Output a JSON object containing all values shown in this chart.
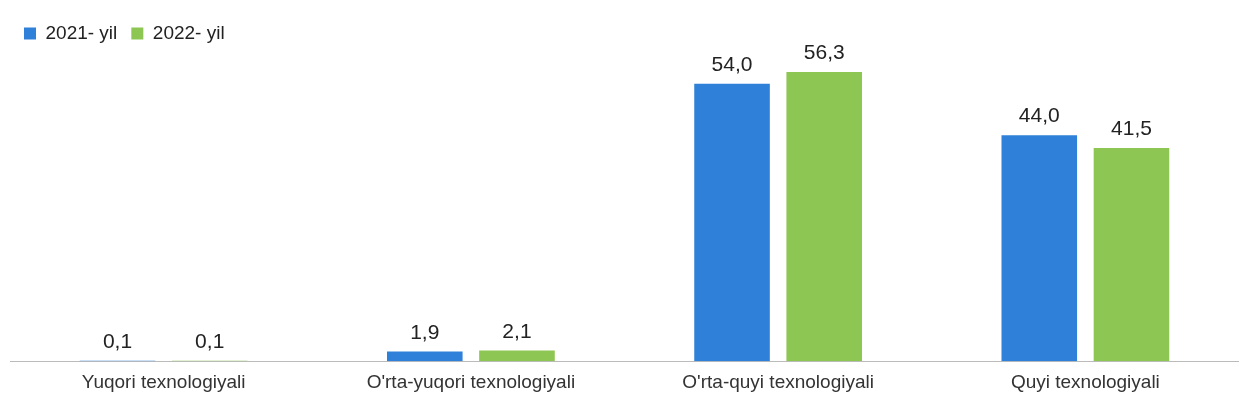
{
  "chart_data": {
    "type": "bar",
    "categories": [
      "Yuqori texnologiyali",
      "O'rta-yuqori texnologiyali",
      "O'rta-quyi texnologiyali",
      "Quyi texnologiyali"
    ],
    "series": [
      {
        "name": "2021- yil",
        "color": "#2f80d8",
        "values": [
          0.1,
          1.9,
          54.0,
          44.0
        ],
        "value_labels": [
          "0,1",
          "1,9",
          "54,0",
          "44,0"
        ]
      },
      {
        "name": "2022- yil",
        "color": "#8dc652",
        "values": [
          0.1,
          2.1,
          56.3,
          41.5
        ],
        "value_labels": [
          "0,1",
          "2,1",
          "56,3",
          "41,5"
        ]
      }
    ],
    "legend": "top left",
    "grid": false
  }
}
